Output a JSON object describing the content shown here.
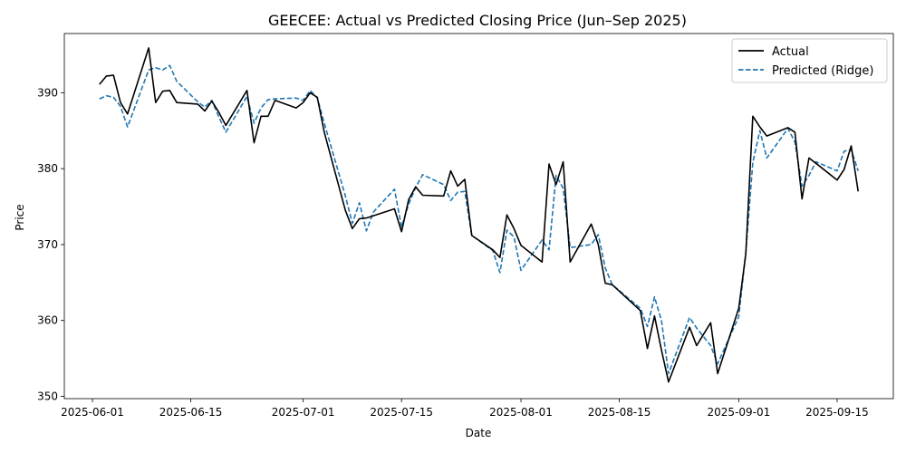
{
  "chart_data": {
    "type": "line",
    "title": "GEECEE: Actual vs Predicted Closing Price (Jun–Sep 2025)",
    "xlabel": "Date",
    "ylabel": "Price",
    "xlim": [
      "2025-05-28",
      "2025-09-23"
    ],
    "ylim": [
      349.7,
      397.8
    ],
    "x_ticks": [
      "2025-06-01",
      "2025-06-15",
      "2025-07-01",
      "2025-07-15",
      "2025-08-01",
      "2025-08-15",
      "2025-09-01",
      "2025-09-15"
    ],
    "y_ticks": [
      350,
      360,
      370,
      380,
      390
    ],
    "grid": false,
    "legend_position": "top-right",
    "x": [
      "2025-06-02",
      "2025-06-03",
      "2025-06-04",
      "2025-06-05",
      "2025-06-06",
      "2025-06-09",
      "2025-06-10",
      "2025-06-11",
      "2025-06-12",
      "2025-06-13",
      "2025-06-16",
      "2025-06-17",
      "2025-06-18",
      "2025-06-19",
      "2025-06-20",
      "2025-06-23",
      "2025-06-24",
      "2025-06-25",
      "2025-06-26",
      "2025-06-27",
      "2025-06-30",
      "2025-07-01",
      "2025-07-02",
      "2025-07-03",
      "2025-07-04",
      "2025-07-07",
      "2025-07-08",
      "2025-07-09",
      "2025-07-10",
      "2025-07-11",
      "2025-07-14",
      "2025-07-15",
      "2025-07-16",
      "2025-07-17",
      "2025-07-18",
      "2025-07-21",
      "2025-07-22",
      "2025-07-23",
      "2025-07-24",
      "2025-07-25",
      "2025-07-28",
      "2025-07-29",
      "2025-07-30",
      "2025-07-31",
      "2025-08-01",
      "2025-08-04",
      "2025-08-05",
      "2025-08-06",
      "2025-08-07",
      "2025-08-08",
      "2025-08-11",
      "2025-08-12",
      "2025-08-13",
      "2025-08-14",
      "2025-08-18",
      "2025-08-19",
      "2025-08-20",
      "2025-08-21",
      "2025-08-22",
      "2025-08-25",
      "2025-08-26",
      "2025-08-28",
      "2025-08-29",
      "2025-09-01",
      "2025-09-02",
      "2025-09-03",
      "2025-09-04",
      "2025-09-05",
      "2025-09-08",
      "2025-09-09",
      "2025-09-10",
      "2025-09-11",
      "2025-09-12",
      "2025-09-15",
      "2025-09-16",
      "2025-09-17",
      "2025-09-18"
    ],
    "series": [
      {
        "name": "Actual",
        "color": "#000000",
        "style": "solid",
        "values": [
          391.1,
          392.2,
          392.3,
          388.7,
          387.2,
          395.9,
          388.7,
          390.2,
          390.3,
          388.7,
          388.5,
          387.6,
          388.9,
          387.4,
          385.7,
          390.3,
          383.4,
          386.9,
          386.9,
          389.0,
          388.0,
          388.7,
          390.0,
          389.4,
          384.8,
          374.5,
          372.1,
          373.4,
          373.5,
          373.8,
          374.7,
          371.7,
          375.9,
          377.6,
          376.5,
          376.4,
          379.7,
          377.7,
          378.6,
          371.2,
          369.3,
          368.3,
          373.9,
          372.1,
          369.9,
          367.7,
          380.6,
          377.9,
          380.9,
          367.7,
          372.7,
          370.0,
          364.9,
          364.7,
          361.3,
          356.3,
          360.6,
          356.1,
          351.9,
          359.1,
          356.7,
          359.7,
          353.0,
          361.6,
          368.8,
          386.9,
          385.5,
          384.3,
          385.4,
          384.8,
          376.0,
          381.4,
          380.7,
          378.5,
          379.9,
          383.0,
          377.0
        ]
      },
      {
        "name": "Predicted (Ridge)",
        "color": "#1f77b4",
        "style": "dashed",
        "values": [
          389.2,
          389.6,
          389.4,
          388.2,
          385.5,
          393.0,
          393.3,
          393.0,
          393.6,
          391.5,
          388.8,
          388.1,
          389.0,
          386.8,
          384.8,
          389.5,
          386.0,
          388.0,
          389.1,
          389.2,
          389.3,
          389.0,
          390.3,
          389.3,
          386.0,
          376.4,
          372.8,
          375.5,
          371.8,
          374.3,
          377.3,
          372.3,
          375.3,
          377.5,
          379.2,
          377.9,
          375.8,
          376.9,
          377.0,
          371.2,
          369.2,
          366.3,
          371.9,
          371.0,
          366.6,
          370.6,
          369.3,
          379.1,
          377.4,
          369.6,
          370.0,
          371.3,
          366.9,
          364.7,
          361.6,
          359.2,
          363.1,
          360.0,
          353.0,
          360.4,
          359.0,
          356.7,
          354.3,
          360.5,
          369.0,
          380.8,
          385.0,
          381.4,
          385.3,
          383.5,
          377.7,
          379.1,
          380.9,
          379.7,
          382.3,
          382.5,
          379.7
        ]
      }
    ]
  }
}
